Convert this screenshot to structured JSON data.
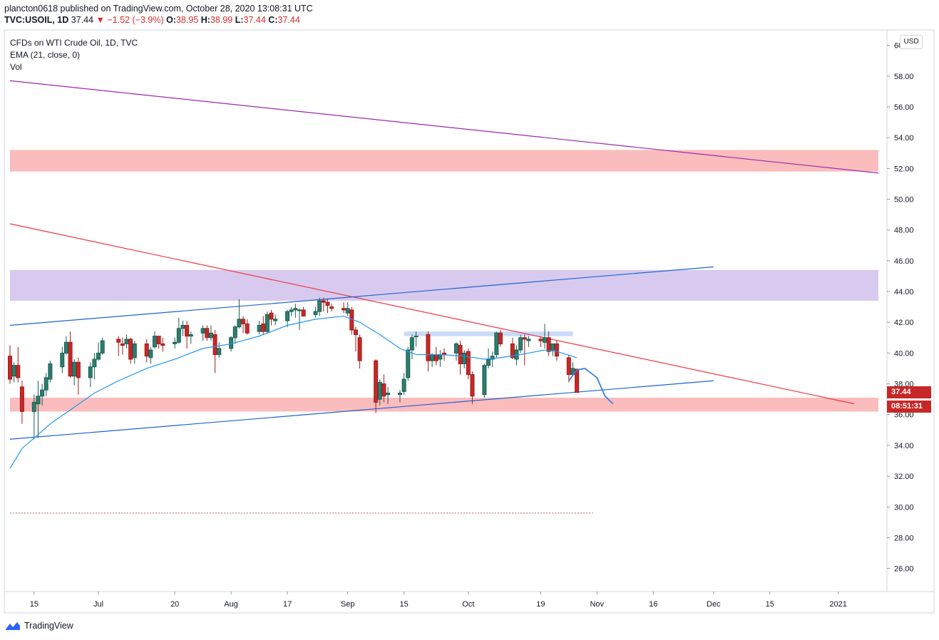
{
  "header": {
    "published": "plancton0618 published on TradingView.com, October 28, 2020 13:08:31 UTC",
    "symbol": "TVC:USOIL, 1D",
    "last": "37.44",
    "change": "▼ −1.52 (−3.9%)",
    "o_label": "O:",
    "o_val": "38.95",
    "h_label": "H:",
    "h_val": "38.99",
    "l_label": "L:",
    "l_val": "37.44",
    "c_label": "C:",
    "c_val": "37.44"
  },
  "legend": {
    "title": "CFDs on WTI Crude Oil, 1D, TVC",
    "ema": "EMA (21, close, 0)",
    "vol": "Vol"
  },
  "axis": {
    "currency": "USD",
    "last_price_tag": "37.44",
    "countdown_tag": "08:51:31"
  },
  "footer": {
    "brand": "TradingView"
  },
  "colors": {
    "up": "#26a69a",
    "down": "#ef5350",
    "candle_up_fill": "#1e6b5e",
    "candle_down_fill": "#b71c1c",
    "ema": "#2196f3",
    "trend_purple": "#9c27b0",
    "trend_red": "#f23645",
    "channel_blue": "#1e63d6",
    "zone_red": "#f8a5a5",
    "zone_purple": "#c9b8e8",
    "zone_blue": "#b7cdf5",
    "tag_red": "#c62828"
  },
  "chart_data": {
    "type": "candlestick",
    "title": "CFDs on WTI Crude Oil, 1D, TVC",
    "ylim": [
      24.5,
      61
    ],
    "y_ticks": [
      "60.00",
      "58.00",
      "56.00",
      "54.00",
      "52.00",
      "50.00",
      "48.00",
      "46.00",
      "44.00",
      "42.00",
      "40.00",
      "38.00",
      "36.00",
      "34.00",
      "32.00",
      "30.00",
      "28.00",
      "26.00"
    ],
    "x_ticks": [
      "15",
      "Jul",
      "20",
      "Aug",
      "17",
      "Sep",
      "15",
      "Oct",
      "19",
      "Nov",
      "16",
      "Dec",
      "15",
      "2021"
    ],
    "x_range_days": [
      "2020-06-09",
      "2021-01-11"
    ],
    "candles": [
      {
        "d": "2020-06-09",
        "o": 39.8,
        "h": 40.5,
        "l": 38.0,
        "c": 38.3
      },
      {
        "d": "2020-06-10",
        "o": 38.5,
        "h": 39.4,
        "l": 38.1,
        "c": 39.2
      },
      {
        "d": "2020-06-11",
        "o": 39.2,
        "h": 40.4,
        "l": 38.1,
        "c": 38.4
      },
      {
        "d": "2020-06-12",
        "o": 37.8,
        "h": 38.2,
        "l": 35.4,
        "c": 36.2
      },
      {
        "d": "2020-06-15",
        "o": 36.2,
        "h": 37.3,
        "l": 34.4,
        "c": 36.8
      },
      {
        "d": "2020-06-16",
        "o": 36.7,
        "h": 38.2,
        "l": 34.5,
        "c": 37.2
      },
      {
        "d": "2020-06-17",
        "o": 37.2,
        "h": 38.0,
        "l": 36.6,
        "c": 37.6
      },
      {
        "d": "2020-06-18",
        "o": 37.6,
        "h": 38.7,
        "l": 37.2,
        "c": 38.4
      },
      {
        "d": "2020-06-19",
        "o": 38.3,
        "h": 39.5,
        "l": 38.1,
        "c": 39.3
      },
      {
        "d": "2020-06-22",
        "o": 39.1,
        "h": 40.4,
        "l": 38.7,
        "c": 40.0
      },
      {
        "d": "2020-06-23",
        "o": 40.0,
        "h": 41.1,
        "l": 39.9,
        "c": 40.7
      },
      {
        "d": "2020-06-24",
        "o": 40.7,
        "h": 41.4,
        "l": 38.4,
        "c": 38.5
      },
      {
        "d": "2020-06-25",
        "o": 38.5,
        "h": 39.6,
        "l": 37.9,
        "c": 39.4
      },
      {
        "d": "2020-06-26",
        "o": 39.4,
        "h": 39.7,
        "l": 37.3,
        "c": 38.4
      },
      {
        "d": "2020-06-29",
        "o": 38.4,
        "h": 39.4,
        "l": 37.8,
        "c": 39.1
      },
      {
        "d": "2020-06-30",
        "o": 39.1,
        "h": 40.0,
        "l": 38.3,
        "c": 39.6
      },
      {
        "d": "2020-07-01",
        "o": 39.6,
        "h": 40.7,
        "l": 39.5,
        "c": 40.0
      },
      {
        "d": "2020-07-02",
        "o": 40.0,
        "h": 41.0,
        "l": 39.9,
        "c": 40.8
      },
      {
        "d": "2020-07-06",
        "o": 40.9,
        "h": 41.1,
        "l": 39.8,
        "c": 40.7
      },
      {
        "d": "2020-07-07",
        "o": 40.6,
        "h": 41.0,
        "l": 39.9,
        "c": 40.5
      },
      {
        "d": "2020-07-08",
        "o": 40.6,
        "h": 41.2,
        "l": 40.3,
        "c": 40.9
      },
      {
        "d": "2020-07-09",
        "o": 40.9,
        "h": 41.0,
        "l": 39.3,
        "c": 39.6
      },
      {
        "d": "2020-07-10",
        "o": 39.7,
        "h": 40.8,
        "l": 39.3,
        "c": 40.6
      },
      {
        "d": "2020-07-13",
        "o": 40.6,
        "h": 40.9,
        "l": 39.4,
        "c": 39.8
      },
      {
        "d": "2020-07-14",
        "o": 39.7,
        "h": 40.4,
        "l": 39.3,
        "c": 40.2
      },
      {
        "d": "2020-07-15",
        "o": 40.4,
        "h": 41.4,
        "l": 40.3,
        "c": 41.1
      },
      {
        "d": "2020-07-16",
        "o": 41.1,
        "h": 41.1,
        "l": 40.3,
        "c": 40.6
      },
      {
        "d": "2020-07-17",
        "o": 40.6,
        "h": 41.0,
        "l": 40.1,
        "c": 40.5
      },
      {
        "d": "2020-07-20",
        "o": 40.6,
        "h": 41.0,
        "l": 40.3,
        "c": 40.7
      },
      {
        "d": "2020-07-21",
        "o": 40.7,
        "h": 42.3,
        "l": 40.6,
        "c": 41.6
      },
      {
        "d": "2020-07-22",
        "o": 41.6,
        "h": 42.1,
        "l": 41.1,
        "c": 41.8
      },
      {
        "d": "2020-07-23",
        "o": 41.8,
        "h": 42.1,
        "l": 40.3,
        "c": 41.1
      },
      {
        "d": "2020-07-24",
        "o": 41.1,
        "h": 41.4,
        "l": 40.6,
        "c": 41.2
      },
      {
        "d": "2020-07-27",
        "o": 41.3,
        "h": 41.8,
        "l": 40.8,
        "c": 41.6
      },
      {
        "d": "2020-07-28",
        "o": 41.6,
        "h": 41.8,
        "l": 40.8,
        "c": 41.0
      },
      {
        "d": "2020-07-29",
        "o": 41.0,
        "h": 41.8,
        "l": 40.8,
        "c": 41.3
      },
      {
        "d": "2020-07-30",
        "o": 41.2,
        "h": 41.5,
        "l": 38.7,
        "c": 39.9
      },
      {
        "d": "2020-07-31",
        "o": 39.9,
        "h": 40.7,
        "l": 39.7,
        "c": 40.3
      },
      {
        "d": "2020-08-03",
        "o": 40.3,
        "h": 41.1,
        "l": 40.1,
        "c": 41.0
      },
      {
        "d": "2020-08-04",
        "o": 41.0,
        "h": 41.8,
        "l": 40.6,
        "c": 41.7
      },
      {
        "d": "2020-08-05",
        "o": 41.7,
        "h": 43.5,
        "l": 41.6,
        "c": 42.2
      },
      {
        "d": "2020-08-06",
        "o": 42.2,
        "h": 42.4,
        "l": 41.3,
        "c": 41.9
      },
      {
        "d": "2020-08-07",
        "o": 41.9,
        "h": 42.2,
        "l": 41.2,
        "c": 41.3
      },
      {
        "d": "2020-08-10",
        "o": 41.4,
        "h": 42.1,
        "l": 41.2,
        "c": 41.8
      },
      {
        "d": "2020-08-11",
        "o": 41.9,
        "h": 42.4,
        "l": 41.2,
        "c": 41.4
      },
      {
        "d": "2020-08-12",
        "o": 41.4,
        "h": 42.7,
        "l": 41.3,
        "c": 42.5
      },
      {
        "d": "2020-08-13",
        "o": 42.6,
        "h": 42.8,
        "l": 41.8,
        "c": 42.2
      },
      {
        "d": "2020-08-14",
        "o": 42.1,
        "h": 42.5,
        "l": 41.8,
        "c": 42.2
      },
      {
        "d": "2020-08-17",
        "o": 42.1,
        "h": 42.8,
        "l": 41.7,
        "c": 42.7
      },
      {
        "d": "2020-08-18",
        "o": 42.7,
        "h": 43.0,
        "l": 42.4,
        "c": 42.8
      },
      {
        "d": "2020-08-19",
        "o": 42.8,
        "h": 43.2,
        "l": 42.3,
        "c": 42.9
      },
      {
        "d": "2020-08-20",
        "o": 42.8,
        "h": 42.9,
        "l": 41.5,
        "c": 42.8
      },
      {
        "d": "2020-08-21",
        "o": 42.8,
        "h": 43.0,
        "l": 42.4,
        "c": 42.4
      },
      {
        "d": "2020-08-24",
        "o": 42.5,
        "h": 43.0,
        "l": 42.3,
        "c": 42.7
      },
      {
        "d": "2020-08-25",
        "o": 42.7,
        "h": 43.6,
        "l": 42.4,
        "c": 43.4
      },
      {
        "d": "2020-08-26",
        "o": 43.4,
        "h": 43.6,
        "l": 42.7,
        "c": 43.3
      },
      {
        "d": "2020-08-27",
        "o": 43.3,
        "h": 43.5,
        "l": 42.6,
        "c": 43.1
      },
      {
        "d": "2020-08-28",
        "o": 43.0,
        "h": 43.2,
        "l": 42.7,
        "c": 42.9
      },
      {
        "d": "2020-08-31",
        "o": 42.9,
        "h": 43.3,
        "l": 42.6,
        "c": 42.8
      },
      {
        "d": "2020-09-01",
        "o": 42.6,
        "h": 43.3,
        "l": 42.4,
        "c": 42.9
      },
      {
        "d": "2020-09-02",
        "o": 42.8,
        "h": 43.0,
        "l": 41.2,
        "c": 41.5
      },
      {
        "d": "2020-09-03",
        "o": 41.5,
        "h": 41.7,
        "l": 40.1,
        "c": 41.2
      },
      {
        "d": "2020-09-04",
        "o": 41.0,
        "h": 41.2,
        "l": 39.0,
        "c": 39.5
      },
      {
        "d": "2020-09-08",
        "o": 39.5,
        "h": 39.6,
        "l": 36.1,
        "c": 36.8
      },
      {
        "d": "2020-09-09",
        "o": 37.0,
        "h": 38.3,
        "l": 36.6,
        "c": 38.1
      },
      {
        "d": "2020-09-10",
        "o": 38.0,
        "h": 38.6,
        "l": 36.8,
        "c": 37.2
      },
      {
        "d": "2020-09-11",
        "o": 37.3,
        "h": 37.8,
        "l": 36.7,
        "c": 37.4
      },
      {
        "d": "2020-09-14",
        "o": 37.3,
        "h": 37.6,
        "l": 36.8,
        "c": 37.4
      },
      {
        "d": "2020-09-15",
        "o": 37.5,
        "h": 38.7,
        "l": 37.3,
        "c": 38.3
      },
      {
        "d": "2020-09-16",
        "o": 38.4,
        "h": 40.4,
        "l": 38.2,
        "c": 40.2
      },
      {
        "d": "2020-09-17",
        "o": 40.2,
        "h": 41.2,
        "l": 39.6,
        "c": 41.0
      },
      {
        "d": "2020-09-18",
        "o": 41.1,
        "h": 41.4,
        "l": 40.4,
        "c": 41.1
      },
      {
        "d": "2020-09-21",
        "o": 41.2,
        "h": 41.4,
        "l": 38.8,
        "c": 39.5
      },
      {
        "d": "2020-09-22",
        "o": 39.5,
        "h": 40.0,
        "l": 39.1,
        "c": 39.9
      },
      {
        "d": "2020-09-23",
        "o": 39.9,
        "h": 40.4,
        "l": 39.2,
        "c": 39.5
      },
      {
        "d": "2020-09-24",
        "o": 39.6,
        "h": 40.2,
        "l": 39.1,
        "c": 39.9
      },
      {
        "d": "2020-09-25",
        "o": 40.0,
        "h": 40.3,
        "l": 39.5,
        "c": 39.9
      },
      {
        "d": "2020-09-28",
        "o": 40.0,
        "h": 40.7,
        "l": 39.5,
        "c": 40.6
      },
      {
        "d": "2020-09-29",
        "o": 40.5,
        "h": 40.8,
        "l": 38.6,
        "c": 39.3
      },
      {
        "d": "2020-09-30",
        "o": 39.3,
        "h": 40.2,
        "l": 39.0,
        "c": 40.0
      },
      {
        "d": "2020-10-01",
        "o": 40.1,
        "h": 40.3,
        "l": 38.3,
        "c": 38.6
      },
      {
        "d": "2020-10-02",
        "o": 38.6,
        "h": 38.8,
        "l": 36.7,
        "c": 37.2
      },
      {
        "d": "2020-10-05",
        "o": 37.3,
        "h": 39.3,
        "l": 37.1,
        "c": 39.2
      },
      {
        "d": "2020-10-06",
        "o": 39.2,
        "h": 40.3,
        "l": 39.0,
        "c": 39.6
      },
      {
        "d": "2020-10-07",
        "o": 39.6,
        "h": 40.1,
        "l": 39.1,
        "c": 39.8
      },
      {
        "d": "2020-10-08",
        "o": 39.9,
        "h": 41.4,
        "l": 39.7,
        "c": 41.3
      },
      {
        "d": "2020-10-09",
        "o": 41.3,
        "h": 41.5,
        "l": 40.4,
        "c": 40.6
      },
      {
        "d": "2020-10-12",
        "o": 40.6,
        "h": 41.0,
        "l": 39.6,
        "c": 39.7
      },
      {
        "d": "2020-10-13",
        "o": 39.6,
        "h": 40.5,
        "l": 39.2,
        "c": 40.2
      },
      {
        "d": "2020-10-14",
        "o": 40.2,
        "h": 41.2,
        "l": 40.0,
        "c": 41.0
      },
      {
        "d": "2020-10-15",
        "o": 41.0,
        "h": 41.2,
        "l": 39.2,
        "c": 40.9
      },
      {
        "d": "2020-10-16",
        "o": 40.8,
        "h": 41.1,
        "l": 40.4,
        "c": 40.9
      },
      {
        "d": "2020-10-19",
        "o": 40.9,
        "h": 41.1,
        "l": 40.4,
        "c": 40.8
      },
      {
        "d": "2020-10-20",
        "o": 40.7,
        "h": 41.9,
        "l": 40.3,
        "c": 41.0
      },
      {
        "d": "2020-10-21",
        "o": 41.0,
        "h": 41.4,
        "l": 39.8,
        "c": 40.1
      },
      {
        "d": "2020-10-22",
        "o": 40.2,
        "h": 40.6,
        "l": 39.8,
        "c": 40.6
      },
      {
        "d": "2020-10-23",
        "o": 40.6,
        "h": 40.8,
        "l": 39.5,
        "c": 39.8
      },
      {
        "d": "2020-10-26",
        "o": 39.7,
        "h": 39.9,
        "l": 38.1,
        "c": 38.6
      },
      {
        "d": "2020-10-27",
        "o": 38.6,
        "h": 39.4,
        "l": 38.5,
        "c": 39.0
      },
      {
        "d": "2020-10-28",
        "o": 38.95,
        "h": 38.99,
        "l": 37.44,
        "c": 37.44
      }
    ],
    "ema": [
      {
        "d": "2020-06-09",
        "v": 32.5
      },
      {
        "d": "2020-06-12",
        "v": 33.8
      },
      {
        "d": "2020-06-16",
        "v": 34.7
      },
      {
        "d": "2020-06-19",
        "v": 35.4
      },
      {
        "d": "2020-06-24",
        "v": 36.3
      },
      {
        "d": "2020-06-30",
        "v": 37.4
      },
      {
        "d": "2020-07-06",
        "v": 38.2
      },
      {
        "d": "2020-07-13",
        "v": 39.0
      },
      {
        "d": "2020-07-20",
        "v": 39.6
      },
      {
        "d": "2020-07-27",
        "v": 40.3
      },
      {
        "d": "2020-08-03",
        "v": 40.6
      },
      {
        "d": "2020-08-10",
        "v": 41.1
      },
      {
        "d": "2020-08-17",
        "v": 41.8
      },
      {
        "d": "2020-08-24",
        "v": 42.2
      },
      {
        "d": "2020-08-31",
        "v": 42.4
      },
      {
        "d": "2020-09-04",
        "v": 42.0
      },
      {
        "d": "2020-09-09",
        "v": 41.2
      },
      {
        "d": "2020-09-14",
        "v": 40.3
      },
      {
        "d": "2020-09-18",
        "v": 39.9
      },
      {
        "d": "2020-09-24",
        "v": 39.9
      },
      {
        "d": "2020-09-30",
        "v": 39.8
      },
      {
        "d": "2020-10-05",
        "v": 39.6
      },
      {
        "d": "2020-10-09",
        "v": 39.7
      },
      {
        "d": "2020-10-14",
        "v": 39.9
      },
      {
        "d": "2020-10-20",
        "v": 40.2
      },
      {
        "d": "2020-10-23",
        "v": 40.1
      },
      {
        "d": "2020-10-28",
        "v": 39.7
      }
    ],
    "drawings": {
      "zones": [
        {
          "name": "upper-resistance-zone",
          "from": "2020-06-09",
          "to": "2021-01-11",
          "top": 53.2,
          "bottom": 51.8,
          "color": "zone_red"
        },
        {
          "name": "resistance-zone",
          "from": "2020-06-09",
          "to": "2021-01-11",
          "top": 45.4,
          "bottom": 43.4,
          "color": "zone_purple"
        },
        {
          "name": "support-zone",
          "from": "2020-06-09",
          "to": "2021-01-11",
          "top": 37.1,
          "bottom": 36.2,
          "color": "zone_red"
        },
        {
          "name": "range-high-zone",
          "from": "2020-09-15",
          "to": "2020-10-27",
          "top": 41.4,
          "bottom": 41.1,
          "color": "zone_blue"
        }
      ],
      "lines": [
        {
          "name": "long-term-downtrend-line",
          "d1": "2020-06-09",
          "p1": 57.7,
          "d2": "2021-01-11",
          "p2": 51.7,
          "color": "trend_purple"
        },
        {
          "name": "descending-trendline",
          "d1": "2020-06-09",
          "p1": 48.4,
          "d2": "2021-01-05",
          "p2": 36.7,
          "color": "trend_red"
        },
        {
          "name": "upper-channel-line",
          "d1": "2020-06-09",
          "p1": 41.8,
          "d2": "2020-12-01",
          "p2": 45.6,
          "color": "channel_blue"
        },
        {
          "name": "lower-channel-line",
          "d1": "2020-06-09",
          "p1": 34.4,
          "d2": "2020-12-01",
          "p2": 38.2,
          "color": "channel_blue"
        },
        {
          "name": "dotted-reference-line",
          "d1": "2020-06-09",
          "p1": 29.6,
          "d2": "2020-11-01",
          "p2": 29.6,
          "color": "trend_red"
        }
      ],
      "projection": [
        {
          "d": "2020-10-26",
          "v": 38.2
        },
        {
          "d": "2020-10-28",
          "v": 38.9
        },
        {
          "d": "2020-10-30",
          "v": 39.0
        },
        {
          "d": "2020-11-02",
          "v": 38.4
        },
        {
          "d": "2020-11-04",
          "v": 37.2
        },
        {
          "d": "2020-11-06",
          "v": 36.7
        }
      ]
    }
  }
}
